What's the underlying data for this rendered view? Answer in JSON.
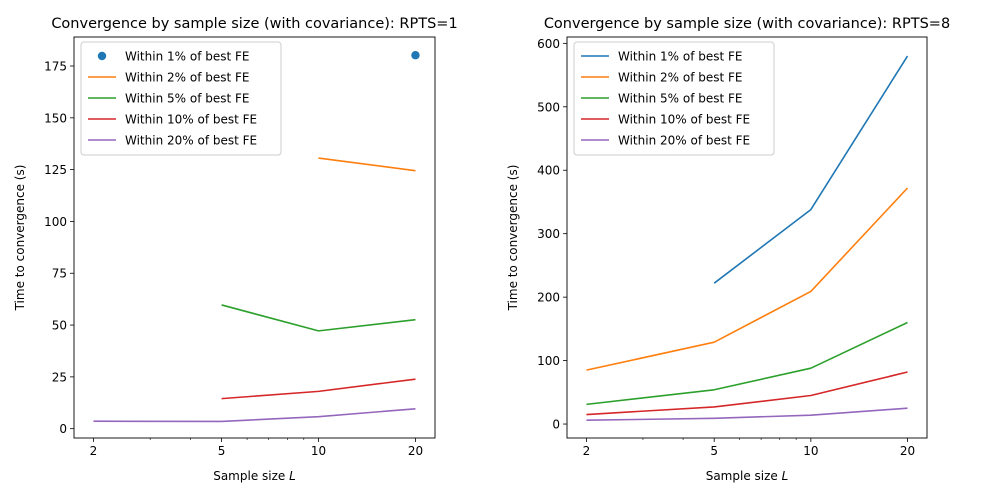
{
  "chart_data": [
    {
      "type": "line",
      "title": "Convergence by sample size (with covariance): RPTS=1",
      "xlabel": "Sample size L",
      "ylabel": "Time to convergence (s)",
      "xscale": "log",
      "xticks": [
        2,
        5,
        10,
        20
      ],
      "yticks": [
        0,
        25,
        50,
        75,
        100,
        125,
        150,
        175
      ],
      "ylim": [
        -4.5,
        189
      ],
      "legend_position": "upper left",
      "series": [
        {
          "name": "Within 1% of best FE",
          "color": "#1f77b4",
          "marker": "point",
          "points": [
            [
              20,
              180.2
            ]
          ]
        },
        {
          "name": "Within 2% of best FE",
          "color": "#ff7f0e",
          "points": [
            [
              10,
              130.6
            ],
            [
              20,
              124.5
            ]
          ]
        },
        {
          "name": "Within 5% of best FE",
          "color": "#2ca02c",
          "points": [
            [
              5,
              59.7
            ],
            [
              10,
              47.2
            ],
            [
              20,
              52.6
            ]
          ]
        },
        {
          "name": "Within 10% of best FE",
          "color": "#d62728",
          "points": [
            [
              5,
              14.5
            ],
            [
              10,
              18.0
            ],
            [
              20,
              23.9
            ]
          ]
        },
        {
          "name": "Within 20% of best FE",
          "color": "#9467bd",
          "points": [
            [
              2,
              3.6
            ],
            [
              5,
              3.5
            ],
            [
              10,
              5.8
            ],
            [
              20,
              9.6
            ]
          ]
        }
      ]
    },
    {
      "type": "line",
      "title": "Convergence by sample size (with covariance): RPTS=8",
      "xlabel": "Sample size L",
      "ylabel": "Time to convergence (s)",
      "xscale": "log",
      "xticks": [
        2,
        5,
        10,
        20
      ],
      "yticks": [
        0,
        100,
        200,
        300,
        400,
        500,
        600
      ],
      "ylim": [
        -22,
        610
      ],
      "legend_position": "upper left",
      "series": [
        {
          "name": "Within 1% of best FE",
          "color": "#1f77b4",
          "points": [
            [
              5,
              222
            ],
            [
              10,
              338
            ],
            [
              20,
              580
            ]
          ]
        },
        {
          "name": "Within 2% of best FE",
          "color": "#ff7f0e",
          "points": [
            [
              2,
              85
            ],
            [
              5,
              129
            ],
            [
              10,
              209
            ],
            [
              20,
              372
            ]
          ]
        },
        {
          "name": "Within 5% of best FE",
          "color": "#2ca02c",
          "points": [
            [
              2,
              31
            ],
            [
              5,
              54
            ],
            [
              10,
              88
            ],
            [
              20,
              160
            ]
          ]
        },
        {
          "name": "Within 10% of best FE",
          "color": "#d62728",
          "points": [
            [
              2,
              15
            ],
            [
              5,
              27
            ],
            [
              10,
              45
            ],
            [
              20,
              82
            ]
          ]
        },
        {
          "name": "Within 20% of best FE",
          "color": "#9467bd",
          "points": [
            [
              2,
              6
            ],
            [
              5,
              9
            ],
            [
              10,
              14
            ],
            [
              20,
              25
            ]
          ]
        }
      ]
    }
  ]
}
